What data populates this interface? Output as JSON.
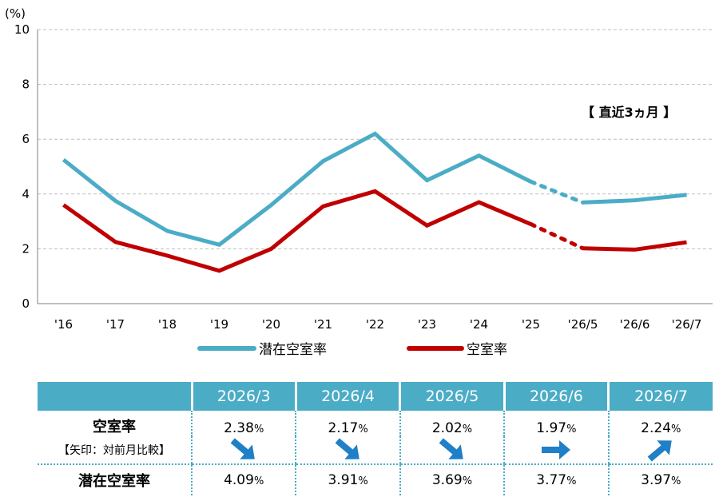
{
  "chart_data": {
    "type": "line",
    "y_unit_label": "(%)",
    "ylim": [
      0,
      10
    ],
    "y_ticks": [
      "0",
      "2",
      "4",
      "6",
      "8",
      "10"
    ],
    "categories": [
      "'16",
      "'17",
      "'18",
      "'19",
      "'20",
      "'21",
      "'22",
      "'23",
      "'24",
      "'25",
      "'26/5",
      "'26/6",
      "'26/7"
    ],
    "series": [
      {
        "name": "潜在空室率",
        "color": "#4bacc6",
        "values": [
          5.25,
          3.75,
          2.65,
          2.15,
          3.6,
          5.2,
          6.2,
          4.5,
          5.4,
          4.45,
          3.69,
          3.77,
          3.97
        ]
      },
      {
        "name": "空室率",
        "color": "#c00000",
        "values": [
          3.6,
          2.25,
          1.75,
          1.2,
          2.0,
          3.55,
          4.1,
          2.85,
          3.7,
          2.9,
          2.02,
          1.97,
          2.24
        ]
      }
    ],
    "dotted_segment_between": [
      "'25",
      "'26/5"
    ],
    "annotation": "【 直近3ヵ月 】",
    "grid": "horizontal-dashed",
    "legend_position": "bottom"
  },
  "table": {
    "months": [
      "2026/3",
      "2026/4",
      "2026/5",
      "2026/6",
      "2026/7"
    ],
    "vacancy_label": "空室率",
    "arrow_note_label": "【矢印：対前月比較】",
    "potential_label": "潜在空室率",
    "vacancy_values": [
      "2.38",
      "2.17",
      "2.02",
      "1.97",
      "2.24"
    ],
    "arrows": [
      "down",
      "down",
      "down",
      "flat",
      "up"
    ],
    "potential_values": [
      "4.09",
      "3.91",
      "3.69",
      "3.77",
      "3.97"
    ],
    "pct_sign": "%",
    "arrow_color": "#1f7fc7"
  }
}
